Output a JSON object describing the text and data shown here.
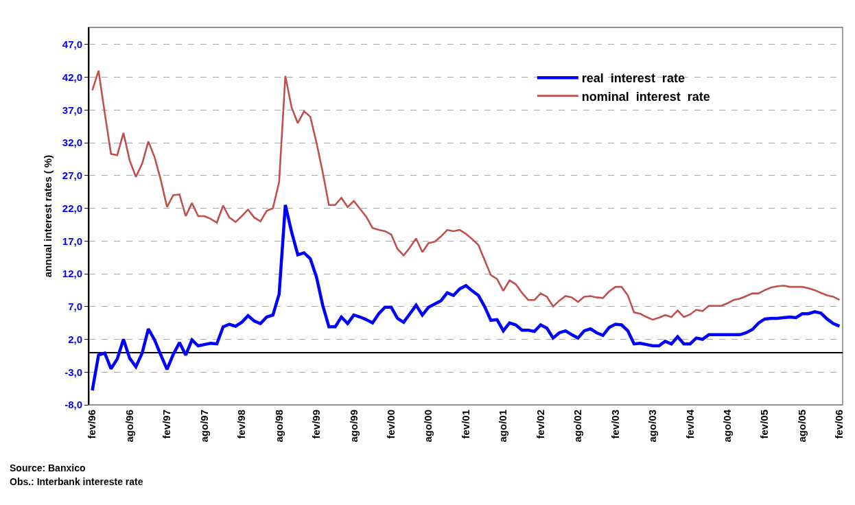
{
  "chart_data": {
    "type": "line",
    "categories": [
      "fev/96",
      null,
      null,
      null,
      null,
      null,
      "ago/96",
      null,
      null,
      null,
      null,
      null,
      "fev/97",
      null,
      null,
      null,
      null,
      null,
      "ago/97",
      null,
      null,
      null,
      null,
      null,
      "fev/98",
      null,
      null,
      null,
      null,
      null,
      "ago/98",
      null,
      null,
      null,
      null,
      null,
      "fev/99",
      null,
      null,
      null,
      null,
      null,
      "ago/99",
      null,
      null,
      null,
      null,
      null,
      "fev/00",
      null,
      null,
      null,
      null,
      null,
      "ago/00",
      null,
      null,
      null,
      null,
      null,
      "fev/01",
      null,
      null,
      null,
      null,
      null,
      "ago/01",
      null,
      null,
      null,
      null,
      null,
      "fev/02",
      null,
      null,
      null,
      null,
      null,
      "ago/02",
      null,
      null,
      null,
      null,
      null,
      "fev/03",
      null,
      null,
      null,
      null,
      null,
      "ago/03",
      null,
      null,
      null,
      null,
      null,
      "fev/04",
      null,
      null,
      null,
      null,
      null,
      "ago/04",
      null,
      null,
      null,
      null,
      null,
      "fev/05",
      null,
      null,
      null,
      null,
      null,
      "ago/05",
      null,
      null,
      null,
      null,
      null,
      "fev/06"
    ],
    "series": [
      {
        "name": "real  interest  rate",
        "color": "#0000ff",
        "values": [
          -5.8,
          -0.4,
          -0.1,
          -2.5,
          -1.0,
          2.0,
          -0.9,
          -2.2,
          -0.1,
          3.6,
          1.9,
          -0.4,
          -2.6,
          -0.3,
          1.5,
          -0.4,
          1.9,
          1.0,
          1.2,
          1.4,
          1.3,
          3.9,
          4.3,
          4.0,
          4.6,
          5.6,
          4.8,
          4.4,
          5.4,
          5.7,
          8.9,
          22.5,
          18.4,
          14.9,
          15.2,
          14.3,
          11.5,
          7.2,
          3.9,
          3.9,
          5.4,
          4.4,
          5.7,
          5.4,
          5.0,
          4.5,
          5.9,
          6.9,
          6.9,
          5.2,
          4.6,
          5.9,
          7.2,
          5.7,
          6.9,
          7.4,
          7.9,
          9.1,
          8.7,
          9.7,
          10.2,
          9.4,
          8.7,
          7.0,
          4.9,
          5.0,
          3.3,
          4.5,
          4.2,
          3.4,
          3.4,
          3.2,
          4.2,
          3.7,
          2.2,
          3.0,
          3.3,
          2.7,
          2.2,
          3.3,
          3.6,
          3.0,
          2.6,
          3.8,
          4.3,
          4.2,
          3.3,
          1.3,
          1.4,
          1.2,
          1.0,
          1.0,
          1.7,
          1.3,
          2.4,
          1.3,
          1.3,
          2.2,
          2.0,
          2.7,
          2.7,
          2.7,
          2.7,
          2.7,
          2.7,
          3.0,
          3.5,
          4.5,
          5.1,
          5.2,
          5.2,
          5.3,
          5.4,
          5.3,
          5.9,
          5.9,
          6.2,
          6.0,
          5.1,
          4.4,
          4.0
        ]
      },
      {
        "name": "nominal  interest  rate",
        "color": "#c0504d",
        "values": [
          40.0,
          43.0,
          36.5,
          30.3,
          30.1,
          33.5,
          29.3,
          26.8,
          28.8,
          32.2,
          29.8,
          26.3,
          22.2,
          24.0,
          24.1,
          20.8,
          22.8,
          20.8,
          20.8,
          20.4,
          19.8,
          22.4,
          20.6,
          19.9,
          20.8,
          21.8,
          20.6,
          20.0,
          21.6,
          22.0,
          26.0,
          42.2,
          37.4,
          35.0,
          36.8,
          36.0,
          32.0,
          27.5,
          22.5,
          22.5,
          23.6,
          22.2,
          23.1,
          21.9,
          20.7,
          19.0,
          18.7,
          18.5,
          18.0,
          15.8,
          14.8,
          16.0,
          17.4,
          15.3,
          16.7,
          16.9,
          17.7,
          18.7,
          18.5,
          18.7,
          18.1,
          17.3,
          16.4,
          14.1,
          11.8,
          11.2,
          9.4,
          11.0,
          10.4,
          9.1,
          8.0,
          8.0,
          9.0,
          8.5,
          7.0,
          7.9,
          8.6,
          8.4,
          7.7,
          8.5,
          8.6,
          8.4,
          8.3,
          9.3,
          10.0,
          10.0,
          8.7,
          6.1,
          5.9,
          5.4,
          5.0,
          5.3,
          5.7,
          5.4,
          6.4,
          5.4,
          5.8,
          6.5,
          6.3,
          7.1,
          7.1,
          7.1,
          7.5,
          8.0,
          8.2,
          8.6,
          9.0,
          9.0,
          9.5,
          9.9,
          10.1,
          10.2,
          10.0,
          10.0,
          10.0,
          9.8,
          9.5,
          9.1,
          8.7,
          8.5,
          8.0
        ]
      }
    ],
    "ylabel": "annual interest rates ( %)",
    "ylim": [
      -8,
      49.6
    ],
    "yticks": [
      {
        "value": -8,
        "label": "-8,0"
      },
      {
        "value": -3,
        "label": "-3,0"
      },
      {
        "value": 2,
        "label": "2,0"
      },
      {
        "value": 7,
        "label": "7,0"
      },
      {
        "value": 12,
        "label": "12,0"
      },
      {
        "value": 17,
        "label": "17,0"
      },
      {
        "value": 22,
        "label": "22,0"
      },
      {
        "value": 27,
        "label": "27,0"
      },
      {
        "value": 32,
        "label": "32,0"
      },
      {
        "value": 37,
        "label": "37,0"
      },
      {
        "value": 42,
        "label": "42,0"
      },
      {
        "value": 47,
        "label": "47,0"
      }
    ],
    "grid": "y",
    "legend": "top right",
    "marker": "none",
    "line_style": "solid",
    "annotations": [
      "Source: Banxico",
      "Obs.: Interbank intereste rate"
    ]
  }
}
